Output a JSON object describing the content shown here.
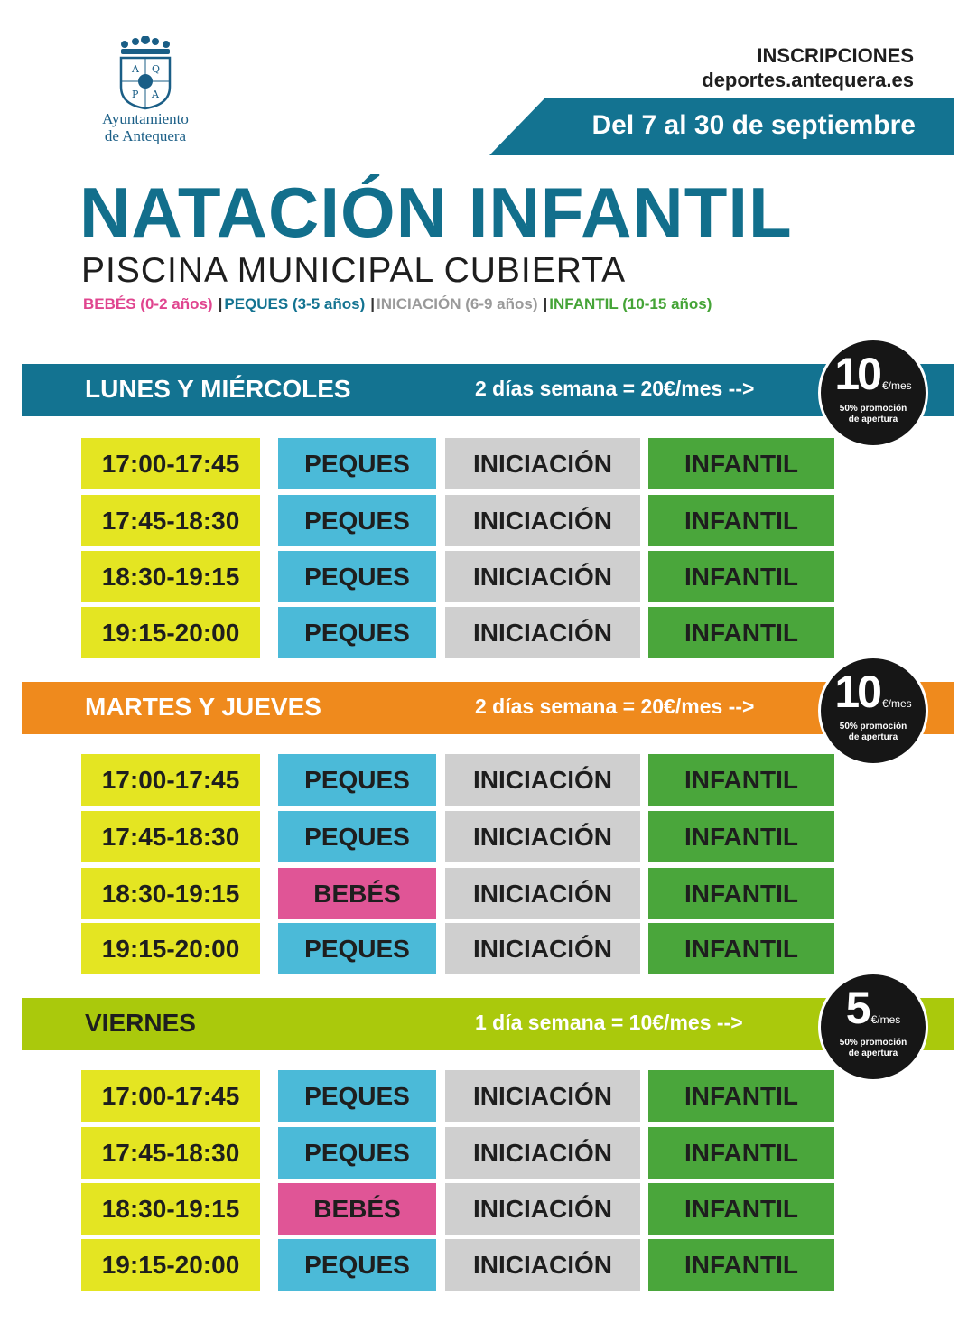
{
  "header": {
    "logo_text_line1": "Ayuntamiento",
    "logo_text_line2": "de Antequera",
    "registration_label": "INSCRIPCIONES",
    "registration_site": "deportes.antequera.es",
    "date_range": "Del 7 al 30 de septiembre"
  },
  "title": "NATACIÓN INFANTIL",
  "subtitle": "PISCINA MUNICIPAL CUBIERTA",
  "legend": {
    "bebes": "BEBÉS (0-2 años)",
    "peques": "PEQUES (3-5 años)",
    "iniciacion": "INICIACIÓN (6-9 años)",
    "infantil": "INFANTIL (10-15 años)",
    "separator": "|"
  },
  "schedules": [
    {
      "day": "LUNES Y MIÉRCOLES",
      "price": "2 días semana = 20€/mes -->",
      "badge_number": "10",
      "badge_unit": "€/mes",
      "badge_note_line1": "50% promoción",
      "badge_note_line2": "de apertura",
      "rows": [
        {
          "time": "17:00-17:45",
          "group1": "PEQUES",
          "group2": "INICIACIÓN",
          "group3": "INFANTIL"
        },
        {
          "time": "17:45-18:30",
          "group1": "PEQUES",
          "group2": "INICIACIÓN",
          "group3": "INFANTIL"
        },
        {
          "time": "18:30-19:15",
          "group1": "PEQUES",
          "group2": "INICIACIÓN",
          "group3": "INFANTIL"
        },
        {
          "time": "19:15-20:00",
          "group1": "PEQUES",
          "group2": "INICIACIÓN",
          "group3": "INFANTIL"
        }
      ]
    },
    {
      "day": "MARTES Y JUEVES",
      "price": "2 días semana = 20€/mes -->",
      "badge_number": "10",
      "badge_unit": "€/mes",
      "badge_note_line1": "50% promoción",
      "badge_note_line2": "de apertura",
      "rows": [
        {
          "time": "17:00-17:45",
          "group1": "PEQUES",
          "group2": "INICIACIÓN",
          "group3": "INFANTIL"
        },
        {
          "time": "17:45-18:30",
          "group1": "PEQUES",
          "group2": "INICIACIÓN",
          "group3": "INFANTIL"
        },
        {
          "time": "18:30-19:15",
          "group1": "BEBÉS",
          "group2": "INICIACIÓN",
          "group3": "INFANTIL"
        },
        {
          "time": "19:15-20:00",
          "group1": "PEQUES",
          "group2": "INICIACIÓN",
          "group3": "INFANTIL"
        }
      ]
    },
    {
      "day": "VIERNES",
      "price": "1 día semana = 10€/mes -->",
      "badge_number": "5",
      "badge_unit": "€/mes",
      "badge_note_line1": "50% promoción",
      "badge_note_line2": "de apertura",
      "rows": [
        {
          "time": "17:00-17:45",
          "group1": "PEQUES",
          "group2": "INICIACIÓN",
          "group3": "INFANTIL"
        },
        {
          "time": "17:45-18:30",
          "group1": "PEQUES",
          "group2": "INICIACIÓN",
          "group3": "INFANTIL"
        },
        {
          "time": "18:30-19:15",
          "group1": "BEBÉS",
          "group2": "INICIACIÓN",
          "group3": "INFANTIL"
        },
        {
          "time": "19:15-20:00",
          "group1": "PEQUES",
          "group2": "INICIACIÓN",
          "group3": "INFANTIL"
        }
      ]
    }
  ],
  "colors": {
    "title_teal": "#126f8c",
    "band_monday": "#137391",
    "band_tuesday": "#ef8a1d",
    "band_friday": "#aac90c",
    "time_yellow": "#e4e522",
    "peques_blue": "#4bbad8",
    "bebes_pink": "#e05596",
    "iniciacion_grey": "#cfcfcf",
    "infantil_green": "#4aa63b",
    "legend_bebes": "#e0458f",
    "legend_peques": "#137391",
    "legend_iniciacion": "#9a9a9a",
    "legend_infantil": "#45a437"
  }
}
